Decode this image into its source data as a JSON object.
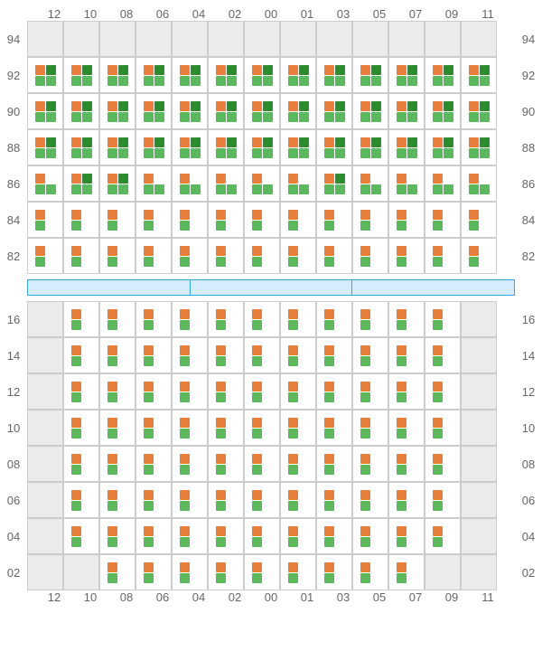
{
  "colors": {
    "orange": "#e67e3c",
    "green": "#5cb85c",
    "dgreen": "#2e8b2e",
    "emptyBg": "#ebebeb",
    "border": "#cccccc",
    "label": "#666666",
    "divBorder": "#3aa3e3",
    "divFill": "#d4ecfb"
  },
  "layout": {
    "cellSize": 40,
    "sqSize": 11,
    "labelFontSize": 13
  },
  "columns": [
    "12",
    "10",
    "08",
    "06",
    "04",
    "02",
    "00",
    "01",
    "03",
    "05",
    "07",
    "09",
    "11"
  ],
  "topRows": [
    "94",
    "92",
    "90",
    "88",
    "86",
    "84",
    "82"
  ],
  "bottomRows": [
    "16",
    "14",
    "12",
    "10",
    "08",
    "06",
    "04",
    "02"
  ],
  "topGrid": [
    [
      "E",
      "E",
      "E",
      "E",
      "E",
      "E",
      "E",
      "E",
      "E",
      "E",
      "E",
      "E",
      "E"
    ],
    [
      "A",
      "A",
      "A",
      "A",
      "A",
      "A",
      "A",
      "A",
      "A",
      "A",
      "A",
      "A",
      "A"
    ],
    [
      "A",
      "A",
      "A",
      "A",
      "A",
      "A",
      "A",
      "A",
      "A",
      "A",
      "A",
      "A",
      "A"
    ],
    [
      "A",
      "A",
      "A",
      "A",
      "A",
      "A",
      "A",
      "A",
      "A",
      "A",
      "A",
      "A",
      "A"
    ],
    [
      "C",
      "A",
      "A",
      "C",
      "C",
      "C",
      "C",
      "C",
      "A",
      "C",
      "C",
      "C",
      "C"
    ],
    [
      "B",
      "B",
      "B",
      "B",
      "B",
      "B",
      "B",
      "B",
      "B",
      "B",
      "B",
      "B",
      "B"
    ],
    [
      "B",
      "B",
      "B",
      "B",
      "B",
      "B",
      "B",
      "B",
      "B",
      "B",
      "B",
      "B",
      "B"
    ]
  ],
  "bottomGrid": [
    [
      "E",
      "B",
      "B",
      "B",
      "B",
      "B",
      "B",
      "B",
      "B",
      "B",
      "B",
      "B",
      "E"
    ],
    [
      "E",
      "B",
      "B",
      "B",
      "B",
      "B",
      "B",
      "B",
      "B",
      "B",
      "B",
      "B",
      "E"
    ],
    [
      "E",
      "B",
      "B",
      "B",
      "B",
      "B",
      "B",
      "B",
      "B",
      "B",
      "B",
      "B",
      "E"
    ],
    [
      "E",
      "B",
      "B",
      "B",
      "B",
      "B",
      "B",
      "B",
      "B",
      "B",
      "B",
      "B",
      "E"
    ],
    [
      "E",
      "B",
      "B",
      "B",
      "B",
      "B",
      "B",
      "B",
      "B",
      "B",
      "B",
      "B",
      "E"
    ],
    [
      "E",
      "B",
      "B",
      "B",
      "B",
      "B",
      "B",
      "B",
      "B",
      "B",
      "B",
      "B",
      "E"
    ],
    [
      "E",
      "B",
      "B",
      "B",
      "B",
      "B",
      "B",
      "B",
      "B",
      "B",
      "B",
      "B",
      "E"
    ],
    [
      "E",
      "E",
      "B",
      "B",
      "B",
      "B",
      "B",
      "B",
      "B",
      "B",
      "B",
      "E",
      "E"
    ]
  ],
  "patterns": {
    "E": [],
    "A": [
      "orange",
      "dgreen",
      "green",
      "green"
    ],
    "B": [
      "orange",
      "",
      "green",
      ""
    ],
    "C": [
      "orange",
      "",
      "green",
      "green"
    ]
  },
  "dividerSegments": 3
}
